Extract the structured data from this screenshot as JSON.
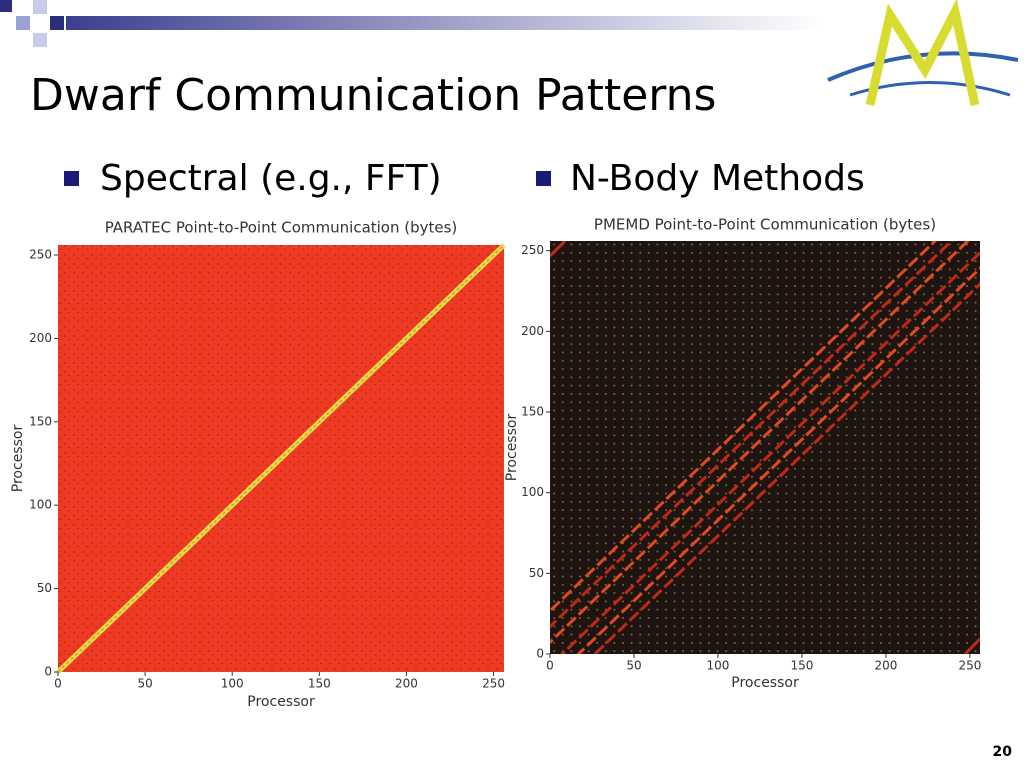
{
  "title": "Dwarf Communication Patterns",
  "bullets": [
    "Spectral (e.g., FFT)",
    "N-Body Methods"
  ],
  "page_number": "20",
  "chart_data": [
    {
      "type": "heatmap",
      "title": "PARATEC Point-to-Point Communication (bytes)",
      "xlabel": "Processor",
      "ylabel": "Processor",
      "xlim": [
        0,
        256
      ],
      "ylim": [
        0,
        256
      ],
      "xticks": [
        0,
        50,
        100,
        150,
        200,
        250
      ],
      "yticks": [
        0,
        50,
        100,
        150,
        200,
        250
      ]
    },
    {
      "type": "heatmap",
      "title": "PMEMD Point-to-Point Communication (bytes)",
      "xlabel": "Processor",
      "ylabel": "Processor",
      "xlim": [
        0,
        256
      ],
      "ylim": [
        0,
        256
      ],
      "xticks": [
        0,
        50,
        100,
        150,
        200,
        250
      ],
      "yticks": [
        0,
        50,
        100,
        150,
        200,
        250
      ]
    }
  ]
}
